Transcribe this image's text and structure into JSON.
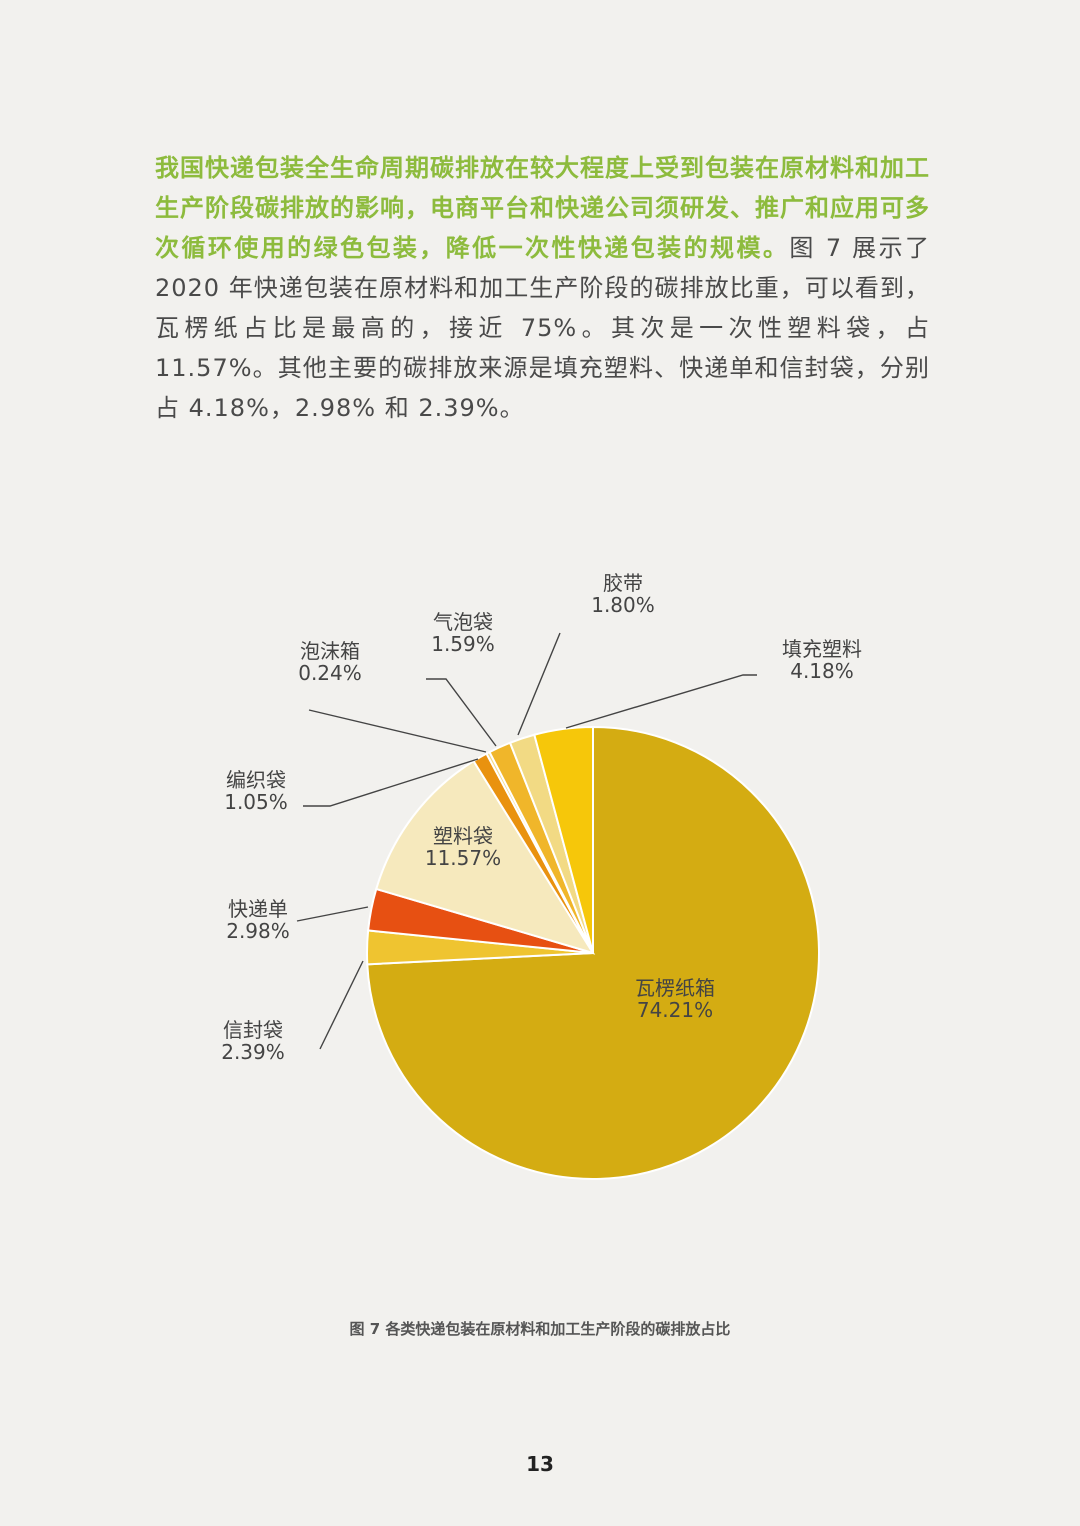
{
  "paragraph": {
    "highlight": "我国快递包装全生命周期碳排放在较大程度上受到包装在原材料和加工生产阶段碳排放的影响，电商平台和快递公司须研发、推广和应用可多次循环使用的绿色包装，降低一次性快递包装的规模。",
    "body": "图 7 展示了 2020 年快递包装在原材料和加工生产阶段的碳排放比重，可以看到，瓦楞纸占比是最高的，接近 75%。其次是一次性塑料袋，占 11.57%。其他主要的碳排放来源是填充塑料、快递单和信封袋，分别占 4.18%，2.98% 和 2.39%。"
  },
  "caption": "图 7  各类快递包装在原材料和加工生产阶段的碳排放占比",
  "page_number": "13",
  "chart_data": {
    "type": "pie",
    "start": "12 o'clock",
    "direction": "clockwise",
    "slices": [
      {
        "label": "瓦楞纸箱",
        "value": 74.21,
        "display": "74.21%",
        "color": "#d4ac12"
      },
      {
        "label": "信封袋",
        "value": 2.39,
        "display": "2.39%",
        "color": "#efc430"
      },
      {
        "label": "快递单",
        "value": 2.98,
        "display": "2.98%",
        "color": "#e75012"
      },
      {
        "label": "塑料袋",
        "value": 11.57,
        "display": "11.57%",
        "color": "#f6e9bd"
      },
      {
        "label": "编织袋",
        "value": 1.05,
        "display": "1.05%",
        "color": "#e9920f"
      },
      {
        "label": "泡沫箱",
        "value": 0.24,
        "display": "0.24%",
        "color": "#f3d98a"
      },
      {
        "label": "气泡袋",
        "value": 1.59,
        "display": "1.59%",
        "color": "#f0b62a"
      },
      {
        "label": "胶带",
        "value": 1.8,
        "display": "1.80%",
        "color": "#f2da84"
      },
      {
        "label": "填充塑料",
        "value": 4.18,
        "display": "4.18%",
        "color": "#f6c70a"
      }
    ]
  }
}
